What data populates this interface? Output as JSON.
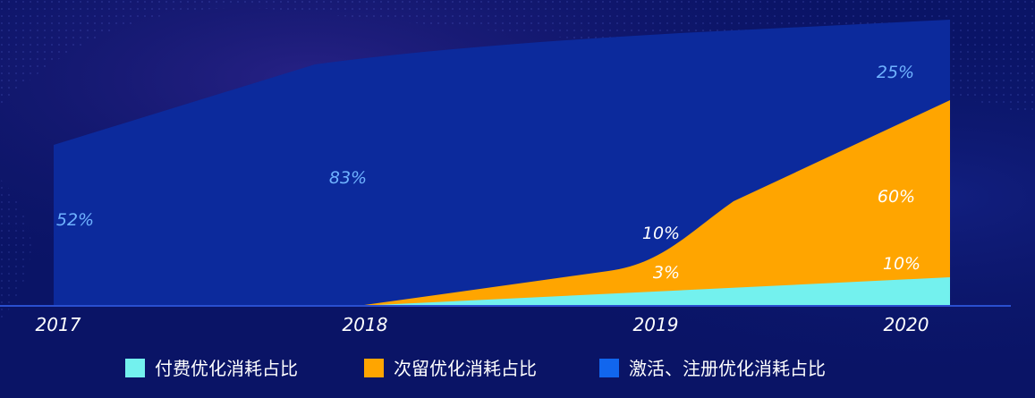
{
  "chart_data": {
    "type": "area",
    "categories": [
      "2017",
      "2018",
      "2019",
      "2020"
    ],
    "series": [
      {
        "name": "付费优化消耗占比",
        "color": "#73f1ee",
        "values": [
          null,
          0,
          3,
          10
        ],
        "labels": [
          null,
          null,
          "3%",
          "10%"
        ],
        "label_color": "#ffffff"
      },
      {
        "name": "次留优化消耗占比",
        "color": "#ffa500",
        "values": [
          null,
          0,
          10,
          60
        ],
        "labels": [
          null,
          null,
          "10%",
          "60%"
        ],
        "label_color": "#ffffff"
      },
      {
        "name": "激活、注册优化消耗占比",
        "color": "#1166ee",
        "values": [
          52,
          83,
          null,
          25
        ],
        "labels": [
          "52%",
          "83%",
          null,
          "25%"
        ],
        "label_color": "#6fb2ff"
      }
    ],
    "legend_position": "bottom",
    "grid": false
  },
  "colors": {
    "background": "#0a1466",
    "area_fill": "#0c2a9c",
    "baseline": "#2a4fd0"
  }
}
